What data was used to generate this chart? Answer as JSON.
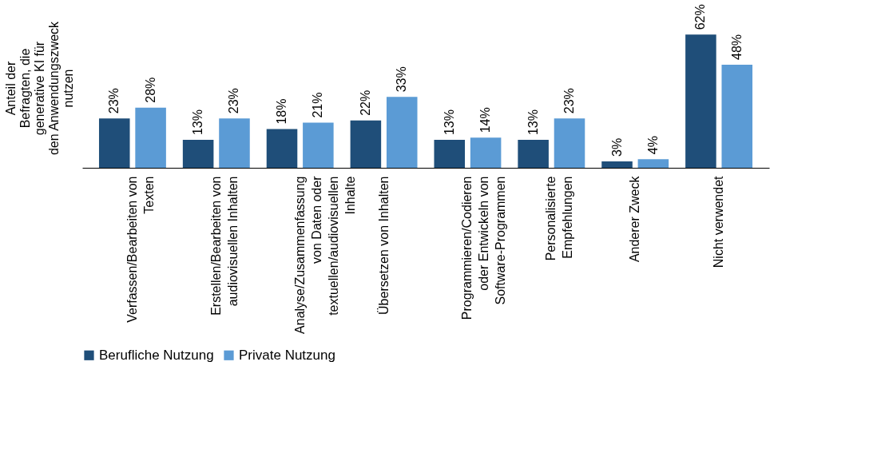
{
  "chart_data": {
    "type": "bar",
    "ylabel": "Anteil der Befragten, die generative KI für den Anwendungszweck nutzen",
    "categories": [
      "Verfassen/Bearbeiten von Texten",
      "Erstellen/Bearbeiten von audiovisuellen Inhalten",
      "Analyse/Zusammenfassung von Daten oder textuellen/audiovisuellen Inhalte",
      "Übersetzen von Inhalten",
      "Programmieren/Codieren oder Entwickeln von Software-Programmen",
      "Personalisierte Empfehlungen",
      "Anderer Zweck",
      "Nicht verwendet"
    ],
    "series": [
      {
        "name": "Berufliche Nutzung",
        "color": "#1f4e79",
        "values": [
          23,
          13,
          18,
          22,
          13,
          13,
          3,
          62
        ],
        "value_labels": [
          "23%",
          "13%",
          "18%",
          "22%",
          "13%",
          "13%",
          "3%",
          "62%"
        ]
      },
      {
        "name": "Private Nutzung",
        "color": "#5b9bd5",
        "values": [
          28,
          23,
          21,
          33,
          14,
          23,
          4,
          48
        ],
        "value_labels": [
          "28%",
          "23%",
          "21%",
          "33%",
          "14%",
          "23%",
          "4%",
          "48%"
        ]
      }
    ],
    "legend": "bottom",
    "grid": false
  }
}
